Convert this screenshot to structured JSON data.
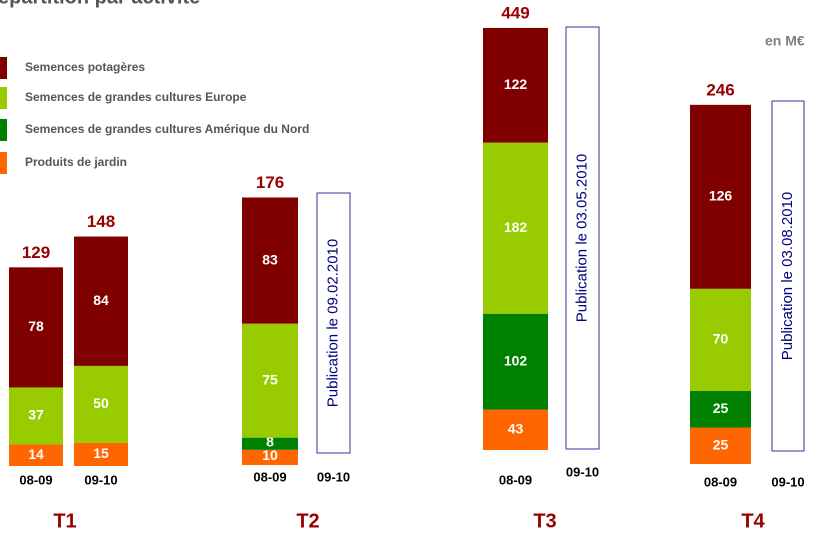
{
  "chart_data": {
    "type": "bar",
    "stacked": true,
    "title": "épartition par activité",
    "unit": "en M€",
    "series": [
      {
        "name": "Semences potagères",
        "color": "#800000",
        "values": [
          78,
          84,
          83,
          122,
          126
        ]
      },
      {
        "name": "Semences de grandes cultures Europe",
        "color": "#99cc00",
        "values": [
          37,
          50,
          75,
          182,
          70
        ]
      },
      {
        "name": "Semences de grandes cultures Amérique du Nord",
        "color": "#008000",
        "values": [
          null,
          null,
          8,
          102,
          25
        ]
      },
      {
        "name": "Produits de jardin",
        "color": "#ff6600",
        "values": [
          14,
          15,
          10,
          43,
          25
        ]
      }
    ],
    "categories": [
      "08-09",
      "09-10",
      "08-09",
      "08-09",
      "08-09"
    ],
    "totals": [
      129,
      148,
      176,
      449,
      246
    ],
    "groups": [
      {
        "label": "T1"
      },
      {
        "label": "T2",
        "pending": {
          "period": "09-10",
          "note": "Publication le 09.02.2010"
        }
      },
      {
        "label": "T3",
        "pending": {
          "period": "09-10",
          "note": "Publication le 03.05.2010"
        }
      },
      {
        "label": "T4",
        "pending": {
          "period": "09-10",
          "note": "Publication le 03.08.2010"
        }
      }
    ]
  }
}
